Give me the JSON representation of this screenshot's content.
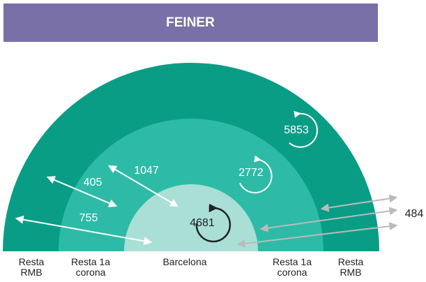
{
  "header": {
    "title": "FEINER"
  },
  "zones": [
    "Resta RMB",
    "Resta 1a corona",
    "Barcelona",
    "Resta 1a corona",
    "Resta RMB"
  ],
  "flows": {
    "rmb_barcelona": 755,
    "corona_rmb": 405,
    "corona_barcelona": 1047,
    "barcelona_internal": 4681,
    "corona_internal": 2772,
    "rmb_internal": 5853,
    "outside": 484
  }
}
